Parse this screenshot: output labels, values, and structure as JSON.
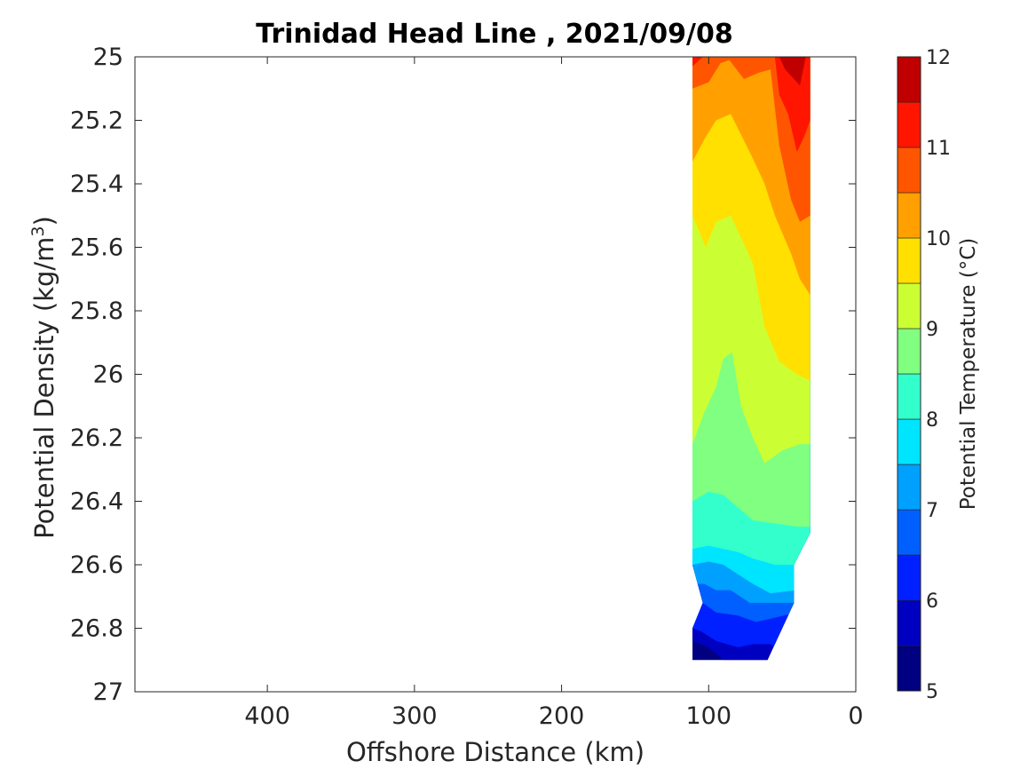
{
  "chart_data": {
    "type": "contour",
    "title": "Trinidad Head Line , 2021/09/08",
    "xlabel": "Offshore Distance (km)",
    "ylabel": "Potential Density (kg/m",
    "ylabel_superscript": "3",
    "ylabel_close": ")",
    "colorbar_label": "Potential Temperature (°C)",
    "x_axis_reversed": true,
    "y_axis_reversed": true,
    "xlim": [
      490,
      0
    ],
    "ylim": [
      25,
      27
    ],
    "x_ticks": [
      {
        "value": 400,
        "label": "400"
      },
      {
        "value": 300,
        "label": "300"
      },
      {
        "value": 200,
        "label": "200"
      },
      {
        "value": 100,
        "label": "100"
      },
      {
        "value": 0,
        "label": "0"
      }
    ],
    "y_ticks": [
      {
        "value": 25,
        "label": "25"
      },
      {
        "value": 25.2,
        "label": "25.2"
      },
      {
        "value": 25.4,
        "label": "25.4"
      },
      {
        "value": 25.6,
        "label": "25.6"
      },
      {
        "value": 25.8,
        "label": "25.8"
      },
      {
        "value": 26,
        "label": "26"
      },
      {
        "value": 26.2,
        "label": "26.2"
      },
      {
        "value": 26.4,
        "label": "26.4"
      },
      {
        "value": 26.6,
        "label": "26.6"
      },
      {
        "value": 26.8,
        "label": "26.8"
      },
      {
        "value": 27,
        "label": "27"
      }
    ],
    "colorbar_ticks": [
      {
        "value": 5,
        "label": "5"
      },
      {
        "value": 6,
        "label": "6"
      },
      {
        "value": 7,
        "label": "7"
      },
      {
        "value": 8,
        "label": "8"
      },
      {
        "value": 9,
        "label": "9"
      },
      {
        "value": 10,
        "label": "10"
      },
      {
        "value": 11,
        "label": "11"
      },
      {
        "value": 12,
        "label": "12"
      }
    ],
    "contour_levels": [
      {
        "min": 5.0,
        "max": 5.5,
        "color": "#000080"
      },
      {
        "min": 5.5,
        "max": 6.0,
        "color": "#0000c0"
      },
      {
        "min": 6.0,
        "max": 6.5,
        "color": "#0020ff"
      },
      {
        "min": 6.5,
        "max": 7.0,
        "color": "#0060ff"
      },
      {
        "min": 7.0,
        "max": 7.5,
        "color": "#00a0ff"
      },
      {
        "min": 7.5,
        "max": 8.0,
        "color": "#00e5ff"
      },
      {
        "min": 8.0,
        "max": 8.5,
        "color": "#33ffcc"
      },
      {
        "min": 8.5,
        "max": 9.0,
        "color": "#80ff80"
      },
      {
        "min": 9.0,
        "max": 9.5,
        "color": "#ccff33"
      },
      {
        "min": 9.5,
        "max": 10.0,
        "color": "#ffe000"
      },
      {
        "min": 10.0,
        "max": 10.5,
        "color": "#ffa000"
      },
      {
        "min": 10.5,
        "max": 11.0,
        "color": "#ff5500"
      },
      {
        "min": 11.0,
        "max": 11.5,
        "color": "#ff1500"
      },
      {
        "min": 11.5,
        "max": 12.0,
        "color": "#c00000"
      }
    ],
    "data_region": {
      "x_range_km": [
        31,
        111
      ],
      "density_range": [
        25,
        26.9
      ]
    },
    "isotherm_boundaries": [
      {
        "temp": 5.5,
        "points": [
          [
            111,
            26.84
          ],
          [
            100,
            26.86
          ],
          [
            90,
            26.9
          ]
        ]
      },
      {
        "temp": 6.0,
        "points": [
          [
            111,
            26.8
          ],
          [
            105,
            26.81
          ],
          [
            95,
            26.84
          ],
          [
            80,
            26.86
          ],
          [
            70,
            26.85
          ],
          [
            58,
            26.85
          ],
          [
            45,
            26.9
          ]
        ]
      },
      {
        "temp": 6.5,
        "points": [
          [
            104,
            26.72
          ],
          [
            95,
            26.75
          ],
          [
            80,
            26.76
          ],
          [
            68,
            26.78
          ],
          [
            58,
            26.77
          ],
          [
            40,
            26.75
          ],
          [
            31,
            26.75
          ]
        ]
      },
      {
        "temp": 7.0,
        "points": [
          [
            103,
            26.66
          ],
          [
            95,
            26.68
          ],
          [
            85,
            26.68
          ],
          [
            72,
            26.72
          ],
          [
            60,
            26.72
          ],
          [
            40,
            26.72
          ],
          [
            31,
            26.72
          ]
        ]
      },
      {
        "temp": 7.5,
        "points": [
          [
            111,
            26.6
          ],
          [
            100,
            26.59
          ],
          [
            90,
            26.6
          ],
          [
            80,
            26.63
          ],
          [
            70,
            26.66
          ],
          [
            58,
            26.69
          ],
          [
            40,
            26.68
          ],
          [
            31,
            26.68
          ]
        ]
      },
      {
        "temp": 8.0,
        "points": [
          [
            111,
            26.55
          ],
          [
            100,
            26.54
          ],
          [
            90,
            26.55
          ],
          [
            80,
            26.56
          ],
          [
            70,
            26.58
          ],
          [
            55,
            26.6
          ],
          [
            40,
            26.6
          ],
          [
            31,
            26.6
          ]
        ]
      },
      {
        "temp": 8.5,
        "points": [
          [
            111,
            26.4
          ],
          [
            100,
            26.37
          ],
          [
            90,
            26.38
          ],
          [
            80,
            26.42
          ],
          [
            70,
            26.46
          ],
          [
            55,
            26.47
          ],
          [
            40,
            26.48
          ],
          [
            31,
            26.48
          ]
        ]
      },
      {
        "temp": 9.0,
        "points": [
          [
            111,
            26.22
          ],
          [
            103,
            26.12
          ],
          [
            95,
            26.04
          ],
          [
            90,
            25.95
          ],
          [
            84,
            25.93
          ],
          [
            78,
            26.1
          ],
          [
            70,
            26.2
          ],
          [
            62,
            26.28
          ],
          [
            50,
            26.24
          ],
          [
            38,
            26.22
          ],
          [
            31,
            26.22
          ]
        ]
      },
      {
        "temp": 9.5,
        "points": [
          [
            111,
            25.5
          ],
          [
            102,
            25.6
          ],
          [
            95,
            25.52
          ],
          [
            85,
            25.5
          ],
          [
            70,
            25.65
          ],
          [
            62,
            25.85
          ],
          [
            52,
            25.96
          ],
          [
            40,
            26.0
          ],
          [
            31,
            26.02
          ]
        ]
      },
      {
        "temp": 10.0,
        "points": [
          [
            111,
            25.33
          ],
          [
            103,
            25.26
          ],
          [
            95,
            25.2
          ],
          [
            85,
            25.18
          ],
          [
            70,
            25.32
          ],
          [
            62,
            25.4
          ],
          [
            55,
            25.5
          ],
          [
            44,
            25.62
          ],
          [
            38,
            25.7
          ],
          [
            31,
            25.75
          ]
        ]
      },
      {
        "temp": 10.5,
        "points": [
          [
            111,
            25.1
          ],
          [
            100,
            25.08
          ],
          [
            92,
            25.02
          ],
          [
            86,
            25.01
          ],
          [
            76,
            25.07
          ],
          [
            66,
            25.05
          ],
          [
            58,
            25.04
          ],
          [
            52,
            25.28
          ],
          [
            44,
            25.45
          ],
          [
            38,
            25.52
          ],
          [
            31,
            25.5
          ]
        ]
      },
      {
        "temp": 11.0,
        "points": [
          [
            111,
            25.03
          ],
          [
            104,
            25.0
          ],
          [
            55,
            25.0
          ],
          [
            52,
            25.12
          ],
          [
            46,
            25.18
          ],
          [
            40,
            25.3
          ],
          [
            35,
            25.25
          ],
          [
            31,
            25.2
          ]
        ]
      },
      {
        "temp": 11.5,
        "points": [
          [
            52,
            25.0
          ],
          [
            48,
            25.04
          ],
          [
            44,
            25.06
          ],
          [
            38,
            25.09
          ],
          [
            34,
            25.0
          ]
        ]
      }
    ]
  }
}
